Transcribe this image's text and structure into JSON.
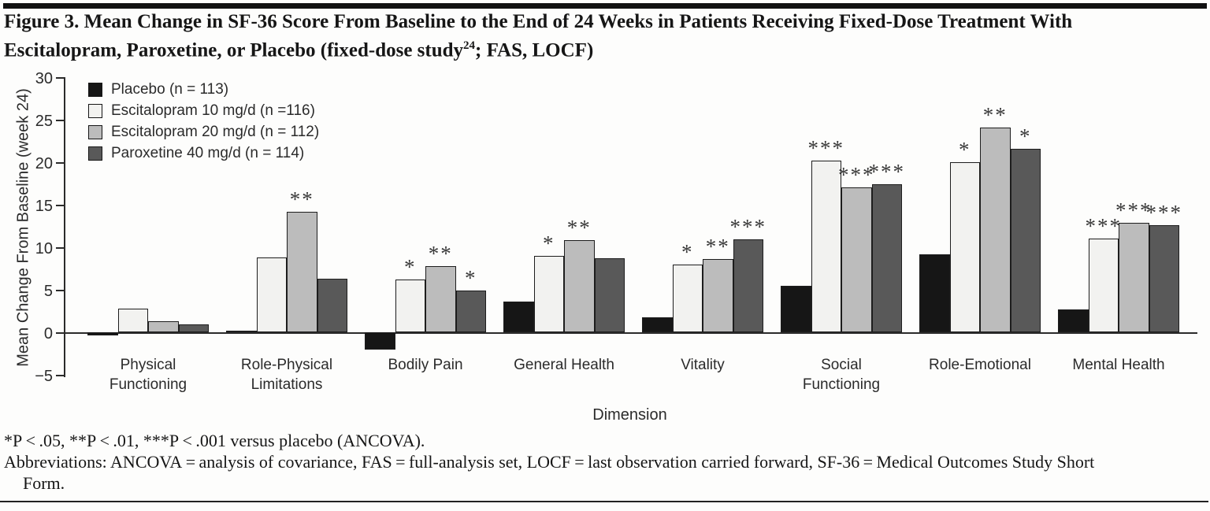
{
  "page": {
    "title_line1": "Figure 3. Mean Change in SF-36 Score From Baseline to the End of 24 Weeks in Patients Receiving Fixed-Dose Treatment With",
    "title_line2_pre": "Escitalopram, Paroxetine, or Placebo (fixed-dose study",
    "title_line2_sup": "24",
    "title_line2_post": "; FAS, LOCF)",
    "footnote_sig": "*P < .05, **P < .01, ***P < .001 versus placebo (ANCOVA).",
    "footnote_abbr_line1": "Abbreviations: ANCOVA = analysis of covariance, FAS = full-analysis set, LOCF = last observation carried forward, SF-36 = Medical Outcomes Study Short",
    "footnote_abbr_line2": "Form."
  },
  "chart_data": {
    "type": "bar",
    "title": "Figure 3. Mean Change in SF-36 Score From Baseline to the End of 24 Weeks in Patients Receiving Fixed-Dose Treatment With Escitalopram, Paroxetine, or Placebo (fixed-dose study24; FAS, LOCF)",
    "xlabel": "Dimension",
    "ylabel": "Mean Change From Baseline (week 24)",
    "ylim": [
      -5,
      30
    ],
    "yticks": [
      30,
      25,
      20,
      15,
      10,
      5,
      0,
      -5
    ],
    "grid": false,
    "legend_position": "top-left",
    "categories": [
      "Physical Functioning",
      "Role-Physical Limitations",
      "Bodily Pain",
      "General Health",
      "Vitality",
      "Social Functioning",
      "Role-Emotional",
      "Mental Health"
    ],
    "series": [
      {
        "name": "Placebo (n = 113)",
        "color": "#161616",
        "values": [
          -0.4,
          0.2,
          -2.0,
          3.6,
          1.8,
          5.5,
          9.2,
          2.7
        ],
        "sig": [
          "",
          "",
          "",
          "",
          "",
          "",
          "",
          ""
        ]
      },
      {
        "name": "Escitalopram 10 mg/d (n =116)",
        "color": "#f2f2f0",
        "values": [
          2.8,
          8.8,
          6.2,
          9.0,
          8.0,
          20.2,
          20.0,
          11.0
        ],
        "sig": [
          "",
          "",
          "*",
          "*",
          "*",
          "***",
          "*",
          "***"
        ]
      },
      {
        "name": "Escitalopram 20 mg/d (n = 112)",
        "color": "#bcbcbc",
        "values": [
          1.3,
          14.2,
          7.8,
          10.8,
          8.6,
          17.0,
          24.1,
          12.9
        ],
        "sig": [
          "",
          "**",
          "**",
          "**",
          "**",
          "***",
          "**",
          "***"
        ]
      },
      {
        "name": "Paroxetine 40 mg/d (n = 114)",
        "color": "#595959",
        "values": [
          0.9,
          6.3,
          4.9,
          8.7,
          10.9,
          17.4,
          21.6,
          12.6
        ],
        "sig": [
          "",
          "",
          "*",
          "",
          "***",
          "***",
          "*",
          "***"
        ]
      }
    ],
    "sig_note": "*P < .05, **P < .01, ***P < .001 versus placebo (ANCOVA)."
  }
}
